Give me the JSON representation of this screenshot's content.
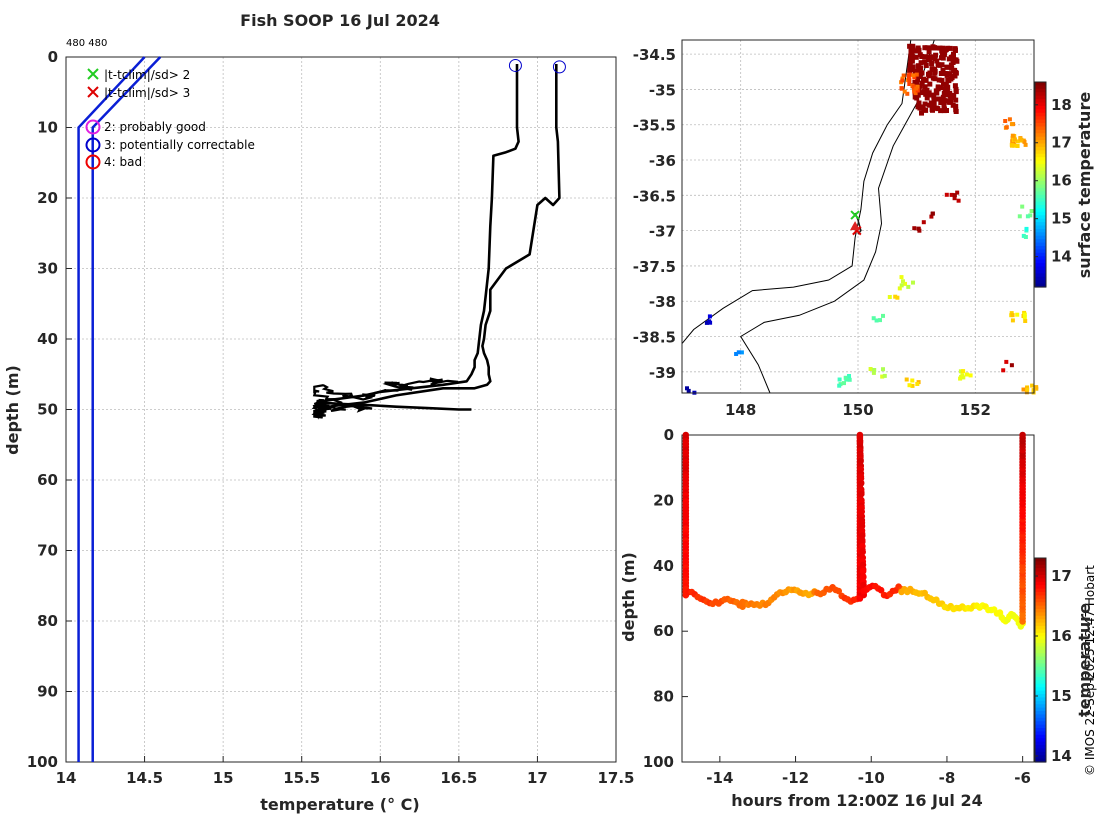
{
  "header": {
    "title": "Fish SOOP 16 Jul 2024",
    "id_label": "480 480",
    "credit": "© IMOS 22-Sep-2025 12:47 Hobart"
  },
  "colors": {
    "profile": "#000000",
    "climatology": "#0a1fd6",
    "flag_x2": "#22cc22",
    "flag_x3": "#dd0000",
    "flag_good": "#e020e0",
    "flag_correctable": "#0000cc",
    "flag_bad": "#ee0000",
    "coast": "#000000",
    "blob": "#a00000"
  },
  "chart_data": [
    {
      "type": "line",
      "name": "profile",
      "xlabel": "temperature (° C)",
      "ylabel": "depth (m)",
      "xlim": [
        14,
        17.5
      ],
      "ylim": [
        100,
        0
      ],
      "xticks": [
        14,
        14.5,
        15,
        15.5,
        16,
        16.5,
        17,
        17.5
      ],
      "xtick_labels": [
        "14",
        "14.5",
        "15",
        "15.5",
        "16",
        "16.5",
        "17",
        "17.5"
      ],
      "yticks": [
        0,
        10,
        20,
        30,
        40,
        50,
        60,
        70,
        80,
        90,
        100
      ],
      "ytick_labels": [
        "0",
        "10",
        "20",
        "30",
        "40",
        "50",
        "60",
        "70",
        "80",
        "90",
        "100"
      ],
      "legend": [
        {
          "marker": "x",
          "label": "|t-tclim|/sd> 2"
        },
        {
          "marker": "x",
          "label": "|t-tclim|/sd> 3"
        },
        {
          "marker": "o",
          "label": "2: probably good"
        },
        {
          "marker": "o",
          "label": "3: potentially correctable"
        },
        {
          "marker": "o",
          "label": "4: bad"
        }
      ],
      "series": [
        {
          "name": "climatology-lower",
          "x": [
            14.08,
            14.08,
            14.08,
            14.08
          ],
          "y": [
            100,
            30,
            10,
            0
          ]
        },
        {
          "name": "climatology-upper",
          "x": [
            14.17,
            14.17,
            14.17,
            14.55
          ],
          "y": [
            100,
            30,
            10,
            0
          ]
        },
        {
          "name": "climatology-top-a",
          "x": [
            14.08,
            14.5
          ],
          "y": [
            10,
            0
          ]
        },
        {
          "name": "climatology-top-b",
          "x": [
            14.17,
            14.6
          ],
          "y": [
            10,
            0
          ]
        },
        {
          "name": "profile-a",
          "x": [
            16.87,
            16.87,
            16.88,
            16.87,
            16.86,
            16.8,
            16.72,
            16.71,
            16.7,
            16.69,
            16.67,
            16.66,
            16.64,
            16.63,
            16.62,
            16.6,
            16.6,
            16.58,
            16.55,
            16.4,
            16.2,
            16.0,
            15.9,
            15.8,
            15.7,
            15.65,
            15.6,
            15.75,
            15.95,
            16.1,
            16.3,
            16.5,
            16.58
          ],
          "y": [
            1,
            10,
            12,
            12.5,
            13,
            13.5,
            14,
            20,
            24,
            30,
            34,
            36,
            38,
            40,
            42,
            43,
            44,
            45,
            46,
            46.5,
            47,
            47.5,
            48,
            48.3,
            48.6,
            48.8,
            49,
            49.2,
            49.4,
            49.6,
            49.8,
            50,
            50
          ]
        },
        {
          "name": "profile-b",
          "x": [
            17.12,
            17.12,
            17.13,
            17.14,
            17.1,
            17.05,
            17.0,
            16.95,
            16.8,
            16.7,
            16.7,
            16.67,
            16.66,
            16.65,
            16.66,
            16.68,
            16.69,
            16.69,
            16.7,
            16.68,
            16.6,
            16.4,
            16.1,
            15.9,
            15.7,
            15.6
          ],
          "y": [
            1,
            10,
            12,
            20,
            21,
            20,
            21,
            28,
            30,
            33,
            36,
            38,
            40,
            41,
            42,
            43,
            44,
            45,
            46,
            46.5,
            47,
            47,
            48,
            49,
            49.5,
            50
          ]
        },
        {
          "name": "profile-noise",
          "x": [
            15.6,
            15.7,
            15.75,
            15.7,
            15.6,
            15.65,
            15.85,
            15.8,
            15.9,
            16.0,
            16.1,
            15.95,
            16.05
          ],
          "y": [
            50,
            51,
            52,
            53,
            54,
            55,
            56,
            55,
            53,
            51,
            50,
            52,
            53
          ]
        }
      ],
      "top_markers": [
        {
          "x": 16.86,
          "y": 1.2
        },
        {
          "x": 17.14,
          "y": 1.4
        }
      ]
    },
    {
      "type": "heatmap",
      "name": "map",
      "xticks": [
        148,
        150,
        152
      ],
      "xtick_labels": [
        "148",
        "150",
        "152"
      ],
      "xlim": [
        147,
        153
      ],
      "ylim": [
        -39.3,
        -34.3
      ],
      "yticks": [
        -34.5,
        -35,
        -35.5,
        -36,
        -36.5,
        -37,
        -37.5,
        -38,
        -38.5,
        -39
      ],
      "ytick_labels": [
        "-34.5",
        "-35",
        "-35.5",
        "-36",
        "-36.5",
        "-37",
        "-37.5",
        "-38",
        "-38.5",
        "-39"
      ],
      "colorbar_label": "surface temperature",
      "colorbar_range": [
        13.2,
        18.6
      ],
      "colorbar_ticks": [
        14,
        15,
        16,
        17,
        18
      ],
      "colorbar_tick_labels": [
        "14",
        "15",
        "16",
        "17",
        "18"
      ],
      "track": {
        "lon": [
          149.95,
          150.0,
          150.05,
          150.0
        ],
        "lat": [
          -36.75,
          -36.85,
          -37.0,
          -37.05
        ]
      }
    },
    {
      "type": "scatter",
      "name": "timeseries",
      "xlabel": "hours from 12:00Z 16 Jul 24",
      "ylabel": "depth (m)",
      "xlim": [
        -15,
        -5.7
      ],
      "ylim": [
        100,
        0
      ],
      "xticks": [
        -14,
        -12,
        -10,
        -8,
        -6
      ],
      "xtick_labels": [
        "-14",
        "-12",
        "-10",
        "-8",
        "-6"
      ],
      "yticks": [
        0,
        20,
        40,
        60,
        80,
        100
      ],
      "ytick_labels": [
        "0",
        "20",
        "40",
        "60",
        "80",
        "100"
      ],
      "colorbar_label": "temperature",
      "colorbar_range": [
        13.9,
        17.3
      ],
      "colorbar_ticks": [
        14,
        15,
        16,
        17
      ],
      "colorbar_tick_labels": [
        "14",
        "15",
        "16",
        "17"
      ],
      "segments": [
        {
          "x0": -14.9,
          "x1": -14.9,
          "d0": 0,
          "d1": 49,
          "t0": 17.0,
          "t1": 16.8
        },
        {
          "x0": -14.9,
          "x1": -13.4,
          "d0": 49,
          "d1": 52,
          "t0": 16.8,
          "t1": 16.5
        },
        {
          "x0": -13.4,
          "x1": -11.5,
          "d0": 52,
          "d1": 47,
          "t0": 16.5,
          "t1": 16.3
        },
        {
          "x0": -11.5,
          "x1": -10.3,
          "d0": 47,
          "d1": 50,
          "t0": 16.5,
          "t1": 16.8
        },
        {
          "x0": -10.3,
          "x1": -10.3,
          "d0": 50,
          "d1": 0,
          "t0": 16.9,
          "t1": 17.0
        },
        {
          "x0": -10.3,
          "x1": -10.2,
          "d0": 0,
          "d1": 50,
          "t0": 17.0,
          "t1": 16.9
        },
        {
          "x0": -10.2,
          "x1": -9.2,
          "d0": 47,
          "d1": 48,
          "t0": 16.9,
          "t1": 16.7
        },
        {
          "x0": -9.2,
          "x1": -6.6,
          "d0": 48,
          "d1": 55,
          "t0": 16.3,
          "t1": 16.0
        },
        {
          "x0": -6.6,
          "x1": -6.0,
          "d0": 55,
          "d1": 57,
          "t0": 16.0,
          "t1": 16.0
        },
        {
          "x0": -6.0,
          "x1": -6.0,
          "d0": 57,
          "d1": 0,
          "t0": 16.5,
          "t1": 17.1
        }
      ]
    }
  ]
}
